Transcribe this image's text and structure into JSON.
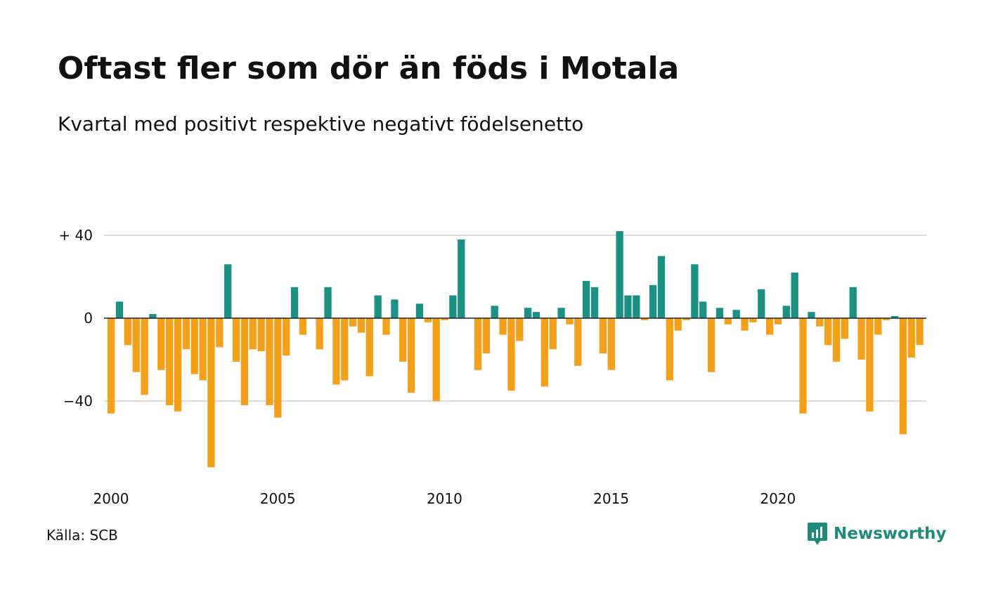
{
  "title": "Oftast fler som dör än föds i Motala",
  "subtitle": "Kvartal med positivt respektive negativt födelsenetto",
  "source": "Källa: SCB",
  "brand": "Newsworthy",
  "colors": {
    "positive": "#1a9183",
    "negative": "#f5a01a",
    "grid": "#dddddd",
    "brand": "#1f8a7c"
  },
  "chart_data": {
    "type": "bar",
    "title": "Oftast fler som dör än föds i Motala",
    "subtitle": "Kvartal med positivt respektive negativt födelsenetto",
    "ylim": [
      -75,
      45
    ],
    "yticks": [
      40,
      0,
      -40
    ],
    "ytick_labels": [
      "+ 40",
      "0",
      "−40"
    ],
    "xticks": [
      2000,
      2005,
      2010,
      2015,
      2020
    ],
    "xtick_labels": [
      "2000",
      "2005",
      "2010",
      "2015",
      "2020"
    ],
    "grid": true,
    "x_start": "2000 Q1",
    "values": [
      -46,
      8,
      -13,
      -26,
      -37,
      2,
      -25,
      -42,
      -45,
      -15,
      -27,
      -30,
      -72,
      -14,
      26,
      -21,
      -42,
      -15,
      -16,
      -42,
      -48,
      -18,
      15,
      -8,
      0,
      -15,
      15,
      -32,
      -30,
      -4,
      -7,
      -28,
      11,
      -8,
      9,
      -21,
      -36,
      7,
      -2,
      -40,
      -1,
      11,
      38,
      0,
      -25,
      -17,
      6,
      -8,
      -35,
      -11,
      5,
      3,
      -33,
      -15,
      5,
      -3,
      -23,
      18,
      15,
      -17,
      -25,
      42,
      11,
      11,
      -1,
      16,
      30,
      -30,
      -6,
      -1,
      26,
      8,
      -26,
      5,
      -3,
      4,
      -6,
      -2,
      14,
      -8,
      -3,
      6,
      22,
      -46,
      3,
      -4,
      -13,
      -21,
      -10,
      15,
      -20,
      -45,
      -8,
      -1,
      1,
      -56,
      -19,
      -13
    ]
  }
}
